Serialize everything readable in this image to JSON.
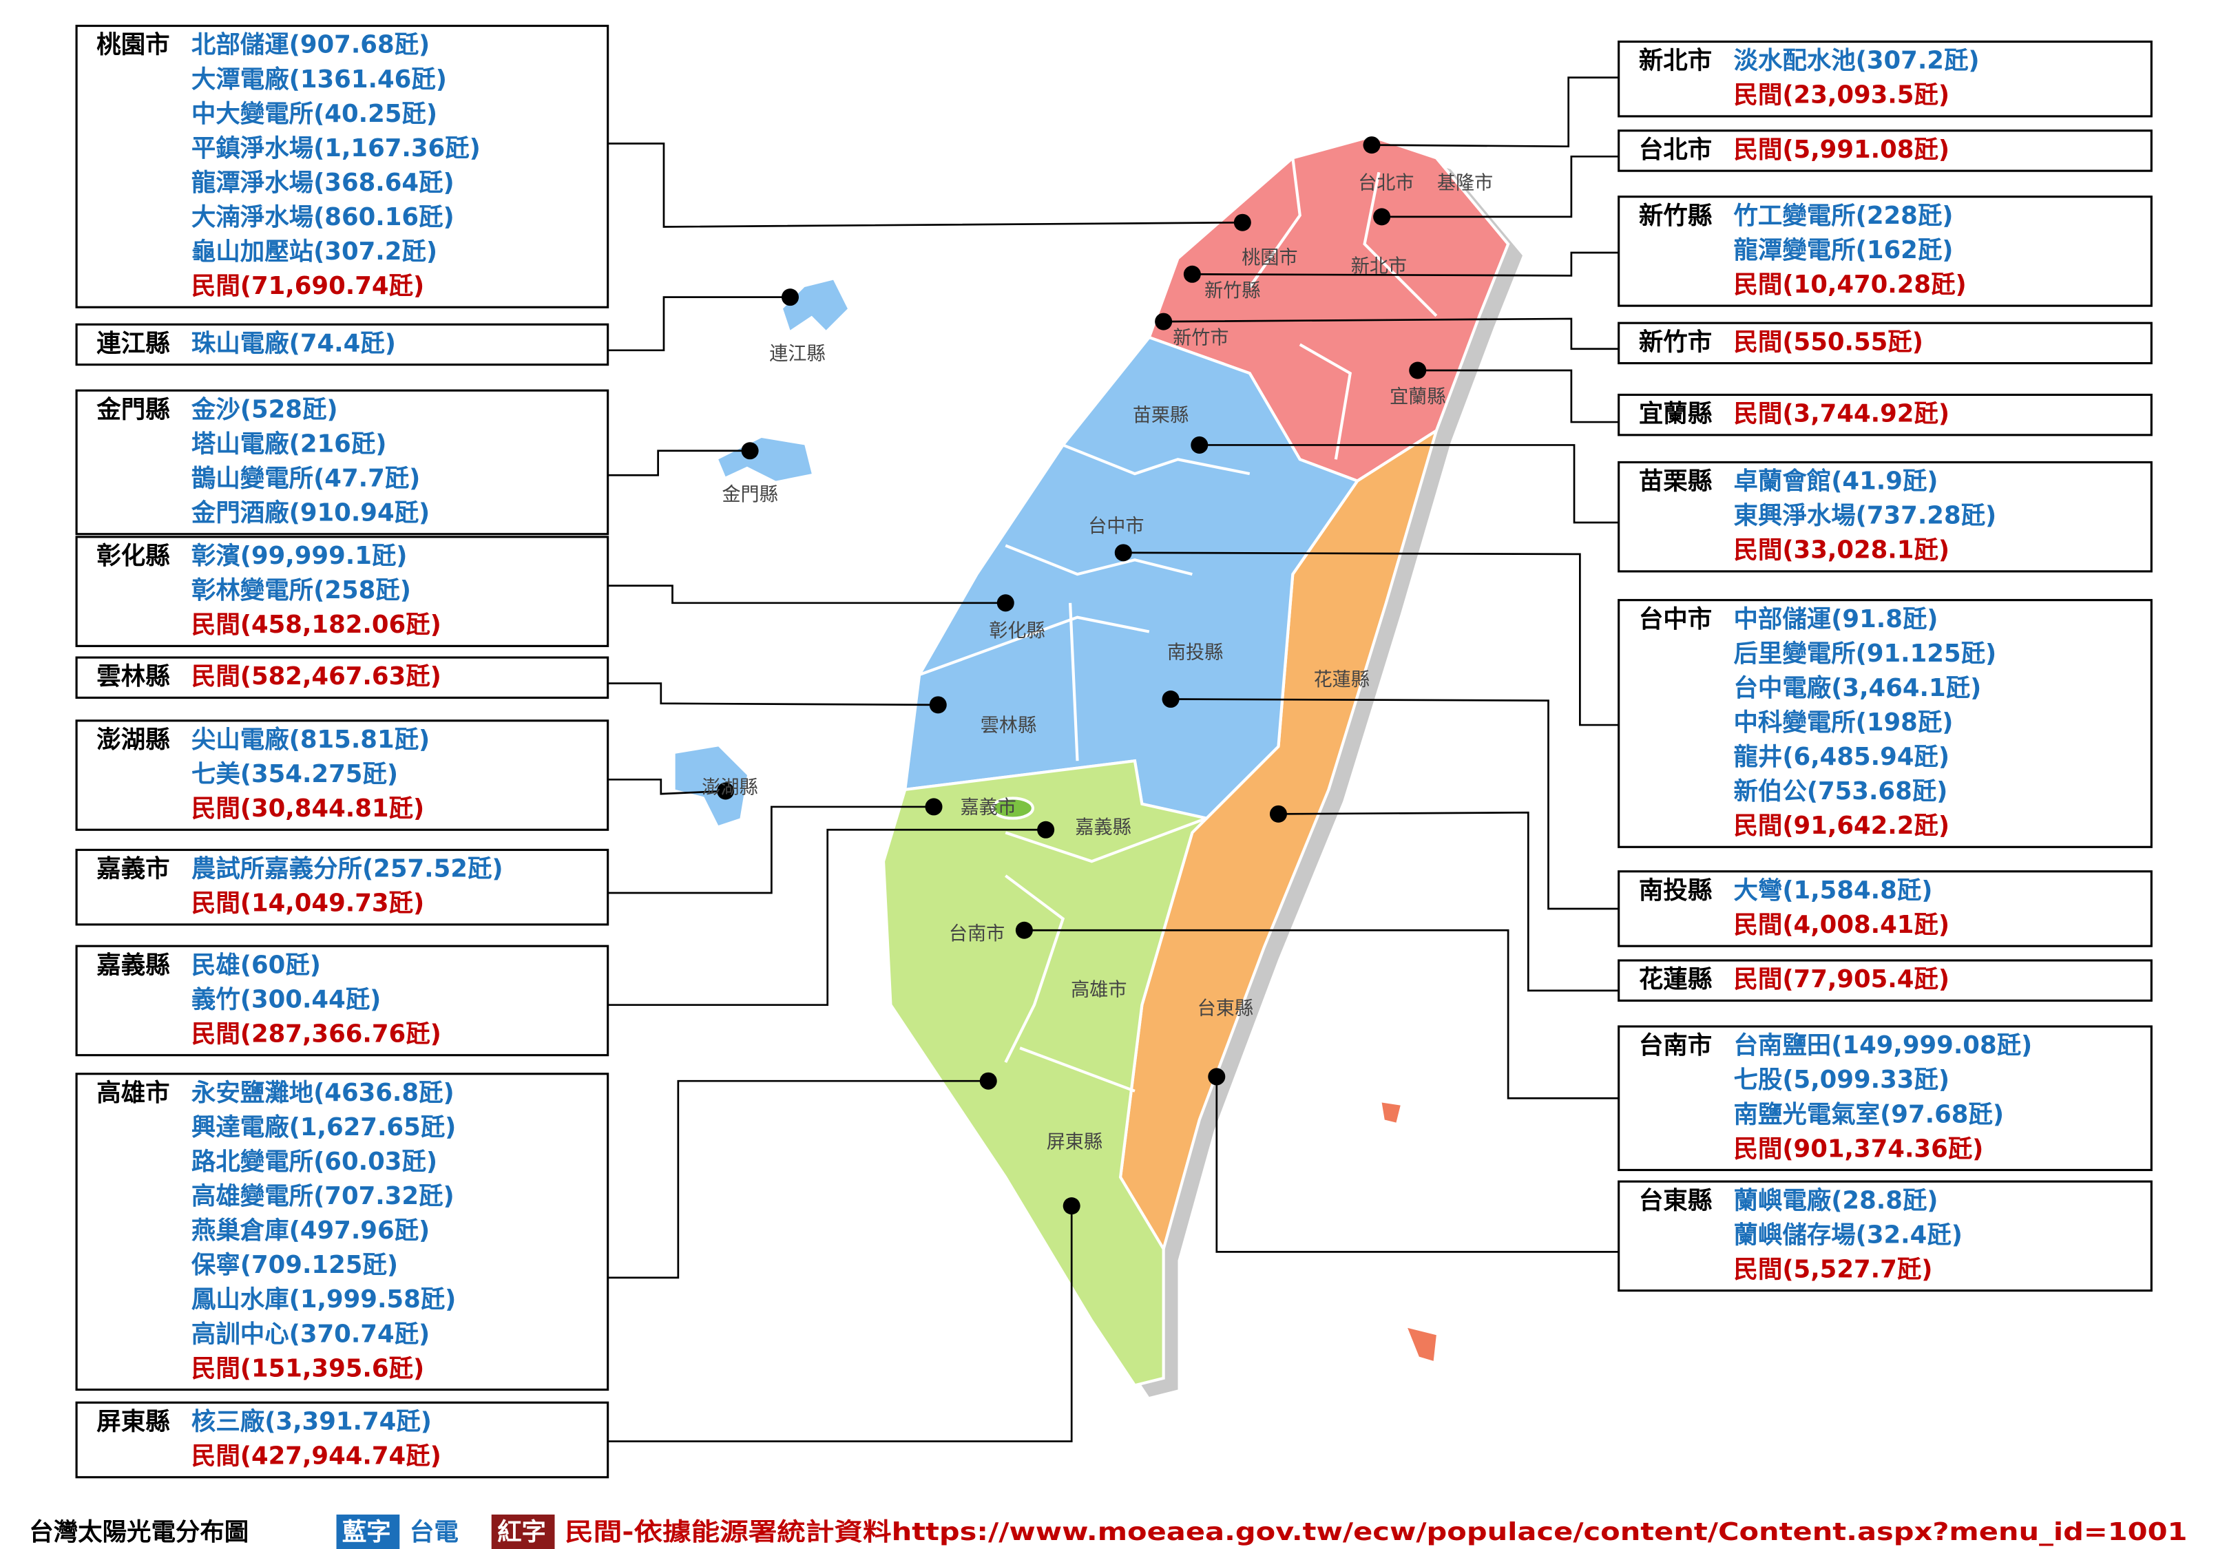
{
  "left_boxes": [
    {
      "county": "桃園市",
      "utility": [
        "北部儲運(907.68瓩)",
        "大潭電廠(1361.46瓩)",
        "中大變電所(40.25瓩)",
        "平鎮淨水場(1,167.36瓩)",
        "龍潭淨水場(368.64瓩)",
        "大湳淨水場(860.16瓩)",
        "龜山加壓站(307.2瓩)"
      ],
      "private": "民間(71,690.74瓩)"
    },
    {
      "county": "連江縣",
      "utility": [
        "珠山電廠(74.4瓩)"
      ]
    },
    {
      "county": "金門縣",
      "utility": [
        "金沙(528瓩)",
        "塔山電廠(216瓩)",
        "鵲山變電所(47.7瓩)",
        "金門酒廠(910.94瓩)"
      ]
    },
    {
      "county": "彰化縣",
      "utility": [
        "彰濱(99,999.1瓩)",
        "彰林變電所(258瓩)"
      ],
      "private": "民間(458,182.06瓩)"
    },
    {
      "county": "雲林縣",
      "private": "民間(582,467.63瓩)"
    },
    {
      "county": "澎湖縣",
      "utility": [
        "尖山電廠(815.81瓩)",
        "七美(354.275瓩)"
      ],
      "private": "民間(30,844.81瓩)"
    },
    {
      "county": "嘉義市",
      "utility": [
        "農試所嘉義分所(257.52瓩)"
      ],
      "private": "民間(14,049.73瓩)"
    },
    {
      "county": "嘉義縣",
      "utility": [
        "民雄(60瓩)",
        "義竹(300.44瓩)"
      ],
      "private": "民間(287,366.76瓩)"
    },
    {
      "county": "高雄市",
      "utility": [
        "永安鹽灘地(4636.8瓩)",
        "興達電廠(1,627.65瓩)",
        "路北變電所(60.03瓩)",
        "高雄變電所(707.32瓩)",
        "燕巢倉庫(497.96瓩)",
        "保寧(709.125瓩)",
        "鳳山水庫(1,999.58瓩)",
        "高訓中心(370.74瓩)"
      ],
      "private": "民間(151,395.6瓩)"
    },
    {
      "county": "屏東縣",
      "utility": [
        "核三廠(3,391.74瓩)"
      ],
      "private": "民間(427,944.74瓩)"
    }
  ],
  "right_boxes": [
    {
      "county": "新北市",
      "utility": [
        "淡水配水池(307.2瓩)"
      ],
      "private": "民間(23,093.5瓩)"
    },
    {
      "county": "台北市",
      "private": "民間(5,991.08瓩)"
    },
    {
      "county": "新竹縣",
      "utility": [
        "竹工變電所(228瓩)",
        "龍潭變電所(162瓩)"
      ],
      "private": "民間(10,470.28瓩)"
    },
    {
      "county": "新竹市",
      "private": "民間(550.55瓩)"
    },
    {
      "county": "宜蘭縣",
      "private": "民間(3,744.92瓩)"
    },
    {
      "county": "苗栗縣",
      "utility": [
        "卓蘭會館(41.9瓩)",
        "東興淨水場(737.28瓩)"
      ],
      "private": "民間(33,028.1瓩)"
    },
    {
      "county": "台中市",
      "utility": [
        "中部儲運(91.8瓩)",
        "后里變電所(91.125瓩)",
        "台中電廠(3,464.1瓩)",
        "中科變電所(198瓩)",
        "龍井(6,485.94瓩)",
        "新伯公(753.68瓩)"
      ],
      "private": "民間(91,642.2瓩)"
    },
    {
      "county": "南投縣",
      "utility": [
        "大彎(1,584.8瓩)"
      ],
      "private": "民間(4,008.41瓩)"
    },
    {
      "county": "花蓮縣",
      "private": "民間(77,905.4瓩)"
    },
    {
      "county": "台南市",
      "utility": [
        "台南鹽田(149,999.08瓩)",
        "七股(5,099.33瓩)",
        "南鹽光電氣室(97.68瓩)"
      ],
      "private": "民間(901,374.36瓩)"
    },
    {
      "county": "台東縣",
      "utility": [
        "蘭嶼電廠(28.8瓩)",
        "蘭嶼儲存場(32.4瓩)"
      ],
      "private": "民間(5,527.7瓩)"
    }
  ],
  "map": {
    "labels": [
      "台北市",
      "基隆市",
      "桃園市",
      "新北市",
      "新竹縣",
      "新竹市",
      "宜蘭縣",
      "苗栗縣",
      "台中市",
      "彰化縣",
      "南投縣",
      "花蓮縣",
      "雲林縣",
      "嘉義市",
      "嘉義縣",
      "台南市",
      "高雄市",
      "台東縣",
      "屏東縣",
      "連江縣",
      "金門縣",
      "澎湖縣"
    ]
  },
  "legend": {
    "title": "台灣太陽光電分布圖",
    "utility_tag": "藍字",
    "utility_label": "台電",
    "private_tag": "紅字",
    "private_label": "民間-依據能源署統計資料https://www.moeaea.gov.tw/ecw/populace/content/Content.aspx?menu_id=1001"
  },
  "colors": {
    "utility": "#1b6fba",
    "private": "#c00000",
    "private_tag": "#8b1a1a"
  }
}
